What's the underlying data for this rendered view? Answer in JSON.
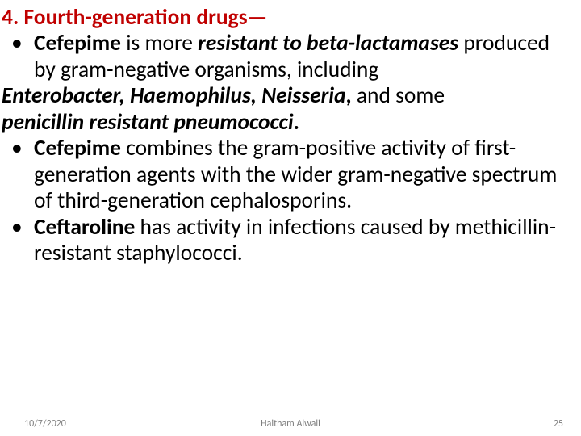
{
  "colors": {
    "heading": "#c00000",
    "body": "#000000",
    "footer": "#7f7f7f",
    "background": "#ffffff"
  },
  "heading": {
    "prefix": "4. Fourth-generation drugs",
    "dash": "—"
  },
  "bullets": [
    {
      "parts": [
        {
          "text": "Cefepime",
          "bold": true
        },
        {
          "text": " is more "
        },
        {
          "text": "resistant to beta-lactamases",
          "bold": true,
          "italic": true
        },
        {
          "text": " produced by gram-negative organisms, including"
        }
      ],
      "cont": [
        {
          "noindent": true,
          "parts": [
            {
              "text": "Enterobacter, Haemophilus, Neisseria",
              "bold": true,
              "italic": true
            },
            {
              "text": ", ",
              "bold": true
            },
            {
              "text": "and some"
            }
          ]
        },
        {
          "noindent": true,
          "parts": [
            {
              "text": "penicillin resistant pneumococci",
              "bold": true,
              "italic": true
            },
            {
              "text": ".",
              "bold": true
            }
          ]
        }
      ]
    },
    {
      "parts": [
        {
          "text": "Cefepime",
          "bold": true
        },
        {
          "text": " combines the gram-positive activity of first-generation agents with the wider gram-negative spectrum of third-generation cephalosporins."
        }
      ]
    },
    {
      "parts": [
        {
          "text": "Ceftaroline",
          "bold": true
        },
        {
          "text": " has activity in infections caused by methicillin-resistant staphylococci."
        }
      ]
    }
  ],
  "footer": {
    "date": "10/7/2020",
    "author": "Haitham Alwali",
    "page": "25"
  }
}
